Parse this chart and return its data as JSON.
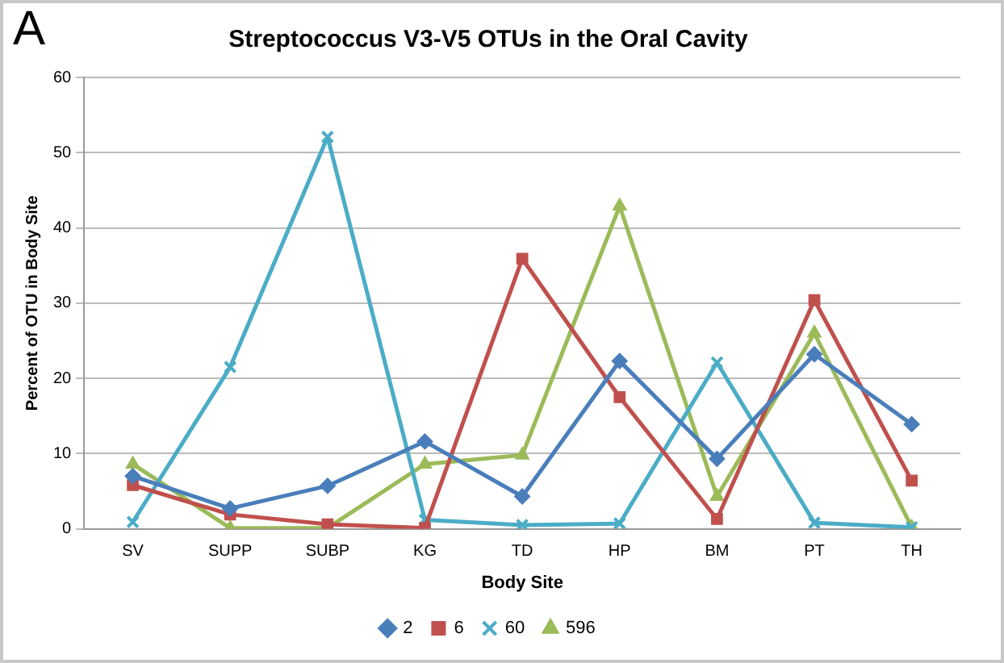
{
  "chart_data": {
    "type": "line",
    "title": "Streptococcus V3-V5 OTUs in the Oral Cavity",
    "xlabel": "Body Site",
    "ylabel": "Percent of OTU in Body Site",
    "annotations": [
      "A"
    ],
    "categories": [
      "SV",
      "SUPP",
      "SUBP",
      "KG",
      "TD",
      "HP",
      "BM",
      "PT",
      "TH"
    ],
    "series": [
      {
        "name": "2",
        "color": "#4a7ebb",
        "marker": "diamond",
        "values": [
          7,
          2.7,
          5.7,
          11.6,
          4.3,
          22.3,
          9.3,
          23.2,
          13.9
        ]
      },
      {
        "name": "6",
        "color": "#c0504d",
        "marker": "square",
        "values": [
          5.8,
          1.9,
          0.6,
          0.1,
          35.9,
          17.5,
          1.3,
          30.4,
          6.4
        ]
      },
      {
        "name": "60",
        "color": "#4bacc6",
        "marker": "cross",
        "values": [
          0.9,
          21.5,
          52.1,
          1.2,
          0.5,
          0.7,
          22.1,
          0.8,
          0.2
        ]
      },
      {
        "name": "596",
        "color": "#9bbb59",
        "marker": "triangle",
        "values": [
          8.6,
          0.1,
          0.1,
          8.6,
          9.8,
          42.9,
          4.3,
          26,
          0.2
        ]
      }
    ],
    "ylim": [
      0,
      60
    ],
    "yticks": [
      0,
      10,
      20,
      30,
      40,
      50,
      60
    ],
    "grid": "y",
    "legend": "bottom",
    "line_style": "solid"
  }
}
